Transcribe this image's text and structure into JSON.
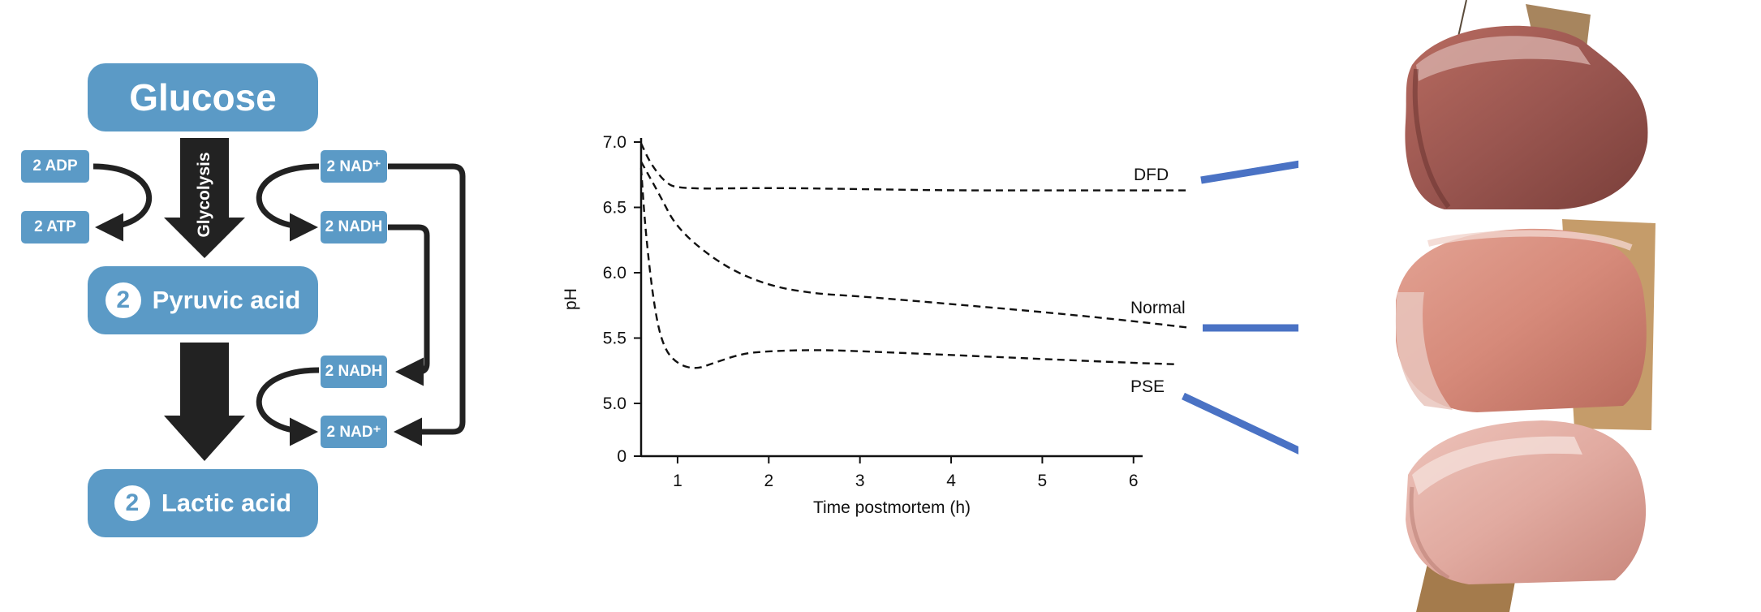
{
  "pathway": {
    "glucose": "Glucose",
    "glycolysis": "Glycolysis",
    "pyruvic": {
      "count": "2",
      "label": "Pyruvic acid"
    },
    "lactic": {
      "count": "2",
      "label": "Lactic acid"
    },
    "adp": "2 ADP",
    "atp": "2 ATP",
    "nad_top": "2 NAD⁺",
    "nadh_top": "2 NADH",
    "nadh_bottom": "2 NADH",
    "nad_bottom": "2 NAD⁺",
    "colors": {
      "box": "#5b9ac6",
      "arrow": "#222222"
    }
  },
  "chart_data": {
    "type": "line",
    "xlabel": "Time postmortem (h)",
    "ylabel": "pH",
    "x_ticks": [
      "1",
      "2",
      "3",
      "4",
      "5",
      "6"
    ],
    "y_ticks": [
      "0",
      "5.0",
      "5.5",
      "6.0",
      "6.5",
      "7.0"
    ],
    "xlim": [
      0.6,
      6.1
    ],
    "ylim": [
      4.8,
      7.0
    ],
    "y_axis_break": true,
    "series": [
      {
        "name": "DFD",
        "x": [
          0.6,
          0.7,
          0.85,
          1.0,
          2.0,
          3.0,
          4.0,
          5.0,
          6.6
        ],
        "y": [
          6.99,
          6.84,
          6.7,
          6.64,
          6.65,
          6.64,
          6.63,
          6.63,
          6.63
        ]
      },
      {
        "name": "Normal",
        "x": [
          0.6,
          0.8,
          1.0,
          1.5,
          2.0,
          2.5,
          3.0,
          4.0,
          5.0,
          6.0,
          6.6
        ],
        "y": [
          6.85,
          6.6,
          6.33,
          6.05,
          5.9,
          5.84,
          5.82,
          5.76,
          5.7,
          5.63,
          5.58
        ]
      },
      {
        "name": "PSE",
        "x": [
          0.6,
          0.65,
          0.75,
          0.85,
          1.0,
          1.2,
          1.4,
          1.7,
          2.0,
          2.5,
          3.0,
          4.0,
          5.0,
          6.0,
          6.45
        ],
        "y": [
          6.8,
          6.3,
          5.7,
          5.42,
          5.3,
          5.26,
          5.31,
          5.38,
          5.4,
          5.41,
          5.4,
          5.37,
          5.34,
          5.31,
          5.3
        ]
      }
    ],
    "line_style": "dashed",
    "grid": false,
    "arrow_color": "#4a72c4"
  },
  "photos": [
    {
      "label": "dark firm dry pork loin",
      "colors": [
        "#7a3f3a",
        "#9a5650",
        "#b86b60"
      ]
    },
    {
      "label": "normal pork loin",
      "colors": [
        "#b86a5c",
        "#d68a7a",
        "#e3a394"
      ]
    },
    {
      "label": "pale soft exudative pork loin",
      "colors": [
        "#c9877c",
        "#e1aaa0",
        "#edc3ba"
      ]
    }
  ]
}
